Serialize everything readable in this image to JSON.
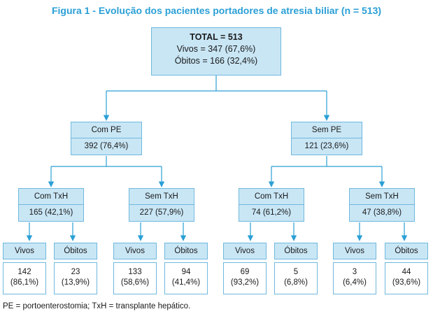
{
  "title": "Figura 1 - Evolução dos pacientes portadores de atresia biliar (n = 513)",
  "root": {
    "total": "TOTAL = 513",
    "vivos": "Vivos = 347 (67,6%)",
    "obitos": "Óbitos = 166 (32,4%)"
  },
  "level1": [
    {
      "label": "Com PE",
      "value": "392 (76,4%)"
    },
    {
      "label": "Sem PE",
      "value": "121 (23,6%)"
    }
  ],
  "level2": [
    {
      "label": "Com TxH",
      "value": "165 (42,1%)"
    },
    {
      "label": "Sem TxH",
      "value": "227 (57,9%)"
    },
    {
      "label": "Com TxH",
      "value": "74 (61,2%)"
    },
    {
      "label": "Sem TxH",
      "value": "47 (38,8%)"
    }
  ],
  "leaves": [
    {
      "label": "Vivos",
      "count": "142",
      "pct": "(86,1%)"
    },
    {
      "label": "Óbitos",
      "count": "23",
      "pct": "(13,9%)"
    },
    {
      "label": "Vivos",
      "count": "133",
      "pct": "(58,6%)"
    },
    {
      "label": "Óbitos",
      "count": "94",
      "pct": "(41,4%)"
    },
    {
      "label": "Vivos",
      "count": "69",
      "pct": "(93,2%)"
    },
    {
      "label": "Óbitos",
      "count": "5",
      "pct": "(6,8%)"
    },
    {
      "label": "Vivos",
      "count": "3",
      "pct": "(6,4%)"
    },
    {
      "label": "Óbitos",
      "count": "44",
      "pct": "(93,6%)"
    }
  ],
  "footnote": "PE = portoenterostomia; TxH = transplante hepático.",
  "colors": {
    "title": "#2a9fd6",
    "box_fill": "#c9e6f5",
    "box_border": "#6fb8dd",
    "arrow": "#2a9fd6"
  }
}
